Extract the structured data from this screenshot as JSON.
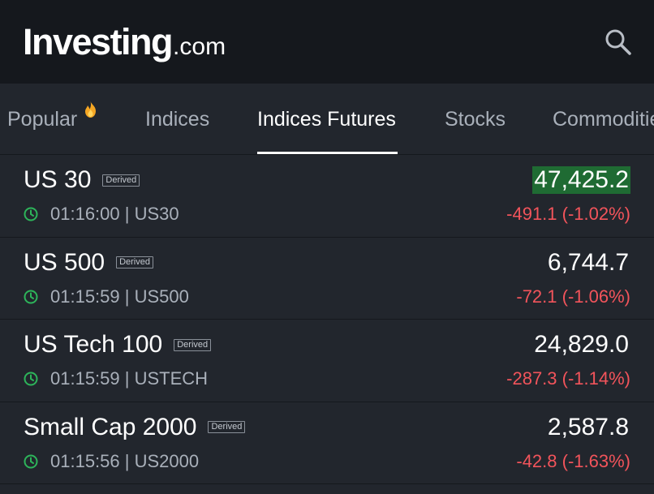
{
  "header": {
    "logo_main": "Investing",
    "logo_suffix": ".com",
    "search_icon": "search-icon"
  },
  "tabs": [
    {
      "label": "Popular",
      "icon": "flame-icon",
      "active": false
    },
    {
      "label": "Indices",
      "active": false
    },
    {
      "label": "Indices Futures",
      "active": true
    },
    {
      "label": "Stocks",
      "active": false
    },
    {
      "label": "Commodities",
      "active": false
    }
  ],
  "rows": [
    {
      "name": "US 30",
      "badge": "Derived",
      "time_symbol": "01:16:00 | US30",
      "price": "47,425.2",
      "change": "-491.1 (-1.02%)",
      "price_flash": true
    },
    {
      "name": "US 500",
      "badge": "Derived",
      "time_symbol": "01:15:59 | US500",
      "price": "6,744.7",
      "change": "-72.1 (-1.06%)",
      "price_flash": false
    },
    {
      "name": "US Tech 100",
      "badge": "Derived",
      "time_symbol": "01:15:59 | USTECH",
      "price": "24,829.0",
      "change": "-287.3 (-1.14%)",
      "price_flash": false
    },
    {
      "name": "Small Cap 2000",
      "badge": "Derived",
      "time_symbol": "01:15:56 | US2000",
      "price": "2,587.8",
      "change": "-42.8 (-1.63%)",
      "price_flash": false
    }
  ],
  "colors": {
    "header_bg": "#15181d",
    "page_bg": "#22262d",
    "negative": "#f2545b",
    "flash_up": "#1f6b33",
    "clock_green": "#2db45a",
    "flame": "#f5a623"
  }
}
